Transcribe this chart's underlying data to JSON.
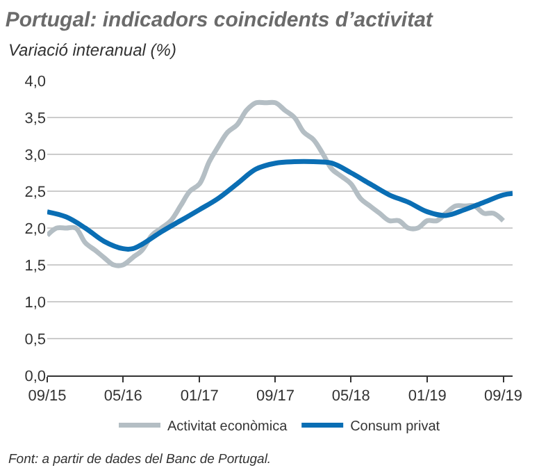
{
  "chart_data": {
    "type": "line",
    "title": "Portugal: indicadors coincidents d’activitat",
    "subtitle": "Variació interanual (%)",
    "x": [
      "2015-09",
      "2015-10",
      "2015-11",
      "2015-12",
      "2016-01",
      "2016-02",
      "2016-03",
      "2016-04",
      "2016-05",
      "2016-06",
      "2016-07",
      "2016-08",
      "2016-09",
      "2016-10",
      "2016-11",
      "2016-12",
      "2017-01",
      "2017-02",
      "2017-03",
      "2017-04",
      "2017-05",
      "2017-06",
      "2017-07",
      "2017-08",
      "2017-09",
      "2017-10",
      "2017-11",
      "2017-12",
      "2018-01",
      "2018-02",
      "2018-03",
      "2018-04",
      "2018-05",
      "2018-06",
      "2018-07",
      "2018-08",
      "2018-09",
      "2018-10",
      "2018-11",
      "2018-12",
      "2019-01",
      "2019-02",
      "2019-03",
      "2019-04",
      "2019-05",
      "2019-06",
      "2019-07",
      "2019-08",
      "2019-09"
    ],
    "series": [
      {
        "name": "Activitat econòmica",
        "color": "#b4bec4",
        "values": [
          1.9,
          2.0,
          2.0,
          2.0,
          1.8,
          1.7,
          1.6,
          1.5,
          1.5,
          1.6,
          1.7,
          1.9,
          2.0,
          2.1,
          2.3,
          2.5,
          2.6,
          2.9,
          3.1,
          3.3,
          3.4,
          3.6,
          3.7,
          3.7,
          3.7,
          3.6,
          3.5,
          3.3,
          3.2,
          3.0,
          2.8,
          2.7,
          2.6,
          2.4,
          2.3,
          2.2,
          2.1,
          2.1,
          2.0,
          2.0,
          2.1,
          2.1,
          2.2,
          2.3,
          2.3,
          2.3,
          2.2,
          2.2,
          2.1
        ]
      },
      {
        "name": "Consum privat",
        "color": "#0a6eb4",
        "x": [
          "2015-09",
          "2015-11",
          "2016-01",
          "2016-03",
          "2016-05",
          "2016-06",
          "2016-07",
          "2016-09",
          "2016-11",
          "2017-01",
          "2017-03",
          "2017-05",
          "2017-07",
          "2017-09",
          "2017-11",
          "2018-01",
          "2018-03",
          "2018-05",
          "2018-07",
          "2018-09",
          "2018-11",
          "2019-01",
          "2019-03",
          "2019-05",
          "2019-07",
          "2019-09",
          "2019-10"
        ],
        "values": [
          2.22,
          2.15,
          2.0,
          1.82,
          1.72,
          1.72,
          1.78,
          1.95,
          2.1,
          2.25,
          2.4,
          2.6,
          2.8,
          2.88,
          2.9,
          2.9,
          2.88,
          2.75,
          2.6,
          2.45,
          2.35,
          2.22,
          2.17,
          2.25,
          2.35,
          2.45,
          2.47
        ]
      }
    ],
    "xlim": [
      "2015-09",
      "2019-10"
    ],
    "xticks": [
      {
        "value": "2015-09",
        "label": "09/15"
      },
      {
        "value": "2016-05",
        "label": "05/16"
      },
      {
        "value": "2017-01",
        "label": "01/17"
      },
      {
        "value": "2017-09",
        "label": "09/17"
      },
      {
        "value": "2018-05",
        "label": "05/18"
      },
      {
        "value": "2019-01",
        "label": "01/19"
      },
      {
        "value": "2019-09",
        "label": "09/19"
      }
    ],
    "ylim": [
      0,
      4
    ],
    "yticks": [
      {
        "value": 0,
        "label": "0,0"
      },
      {
        "value": 0.5,
        "label": "0,5"
      },
      {
        "value": 1,
        "label": "1,0"
      },
      {
        "value": 1.5,
        "label": "1,5"
      },
      {
        "value": 2,
        "label": "2,0"
      },
      {
        "value": 2.5,
        "label": "2,5"
      },
      {
        "value": 3,
        "label": "3,0"
      },
      {
        "value": 3.5,
        "label": "3,5"
      },
      {
        "value": 4,
        "label": "4,0"
      }
    ],
    "grid": "y",
    "legend": "bottom",
    "marker": "none",
    "line_style": "solid",
    "annotations": [
      "Font: a partir de dades del Banc de Portugal."
    ]
  }
}
